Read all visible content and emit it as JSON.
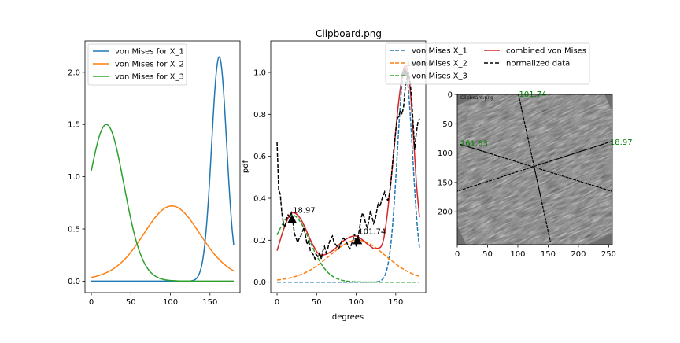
{
  "figure_title": "Clipboard.png",
  "colors": {
    "blue": "#1f77b4",
    "orange": "#ff7f0e",
    "green": "#2ca02c",
    "red": "#d62728",
    "black": "#000000"
  },
  "chart_data": [
    {
      "type": "line",
      "title": "",
      "xlabel": "",
      "ylabel": "",
      "xlim": [
        -8,
        188
      ],
      "ylim": [
        -0.11,
        2.3
      ],
      "xticks": [
        "0",
        "50",
        "100",
        "150"
      ],
      "yticks": [
        "0.0",
        "0.5",
        "1.0",
        "1.5",
        "2.0"
      ],
      "legend_position": "top-left",
      "series": [
        {
          "name": "von Mises for X_1",
          "color": "#1f77b4",
          "mu": 161.63,
          "peak": 2.15,
          "kappa": 36,
          "x": [
            0,
            100,
            120,
            130,
            140,
            150,
            155,
            160,
            162,
            165,
            170,
            175,
            180
          ],
          "y": [
            0.0,
            0.0,
            0.0,
            0.01,
            0.17,
            1.12,
            1.69,
            2.12,
            2.15,
            2.07,
            1.59,
            1.1,
            0.65
          ]
        },
        {
          "name": "von Mises for X_2",
          "color": "#ff7f0e",
          "mu": 101.74,
          "peak": 0.72,
          "kappa": 2.5,
          "x": [
            0,
            25,
            50,
            75,
            100,
            125,
            150,
            180
          ],
          "y": [
            0.01,
            0.05,
            0.21,
            0.51,
            0.72,
            0.53,
            0.22,
            0.04
          ]
        },
        {
          "name": "von Mises for X_3",
          "color": "#2ca02c",
          "mu": 18.97,
          "peak": 1.5,
          "kappa": 6.5,
          "x": [
            0,
            10,
            19,
            30,
            50,
            75,
            100,
            180
          ],
          "y": [
            0.69,
            1.31,
            1.5,
            1.31,
            0.38,
            0.02,
            0.0,
            0.0
          ]
        }
      ]
    },
    {
      "type": "line",
      "title": "Clipboard.png",
      "xlabel": "degrees",
      "ylabel": "pdf",
      "xlim": [
        -8,
        188
      ],
      "ylim": [
        -0.05,
        1.15
      ],
      "xticks": [
        "0",
        "50",
        "100",
        "150"
      ],
      "yticks": [
        "0.0",
        "0.2",
        "0.4",
        "0.6",
        "0.8",
        "1.0"
      ],
      "legend_position": "top-right",
      "series": [
        {
          "name": "von Mises X_1",
          "color": "#1f77b4",
          "dashed": true,
          "mu": 161.63,
          "peak": 1.02,
          "kappa": 36
        },
        {
          "name": "von Mises X_2",
          "color": "#ff7f0e",
          "dashed": true,
          "mu": 101.74,
          "peak": 0.2,
          "kappa": 2.5
        },
        {
          "name": "von Mises X_3",
          "color": "#2ca02c",
          "dashed": true,
          "mu": 18.97,
          "peak": 0.32,
          "kappa": 6.5
        },
        {
          "name": "combined von Mises",
          "color": "#d62728",
          "dashed": false,
          "x": [
            0,
            10,
            19,
            30,
            45,
            55,
            70,
            85,
            100,
            115,
            125,
            135,
            145,
            152,
            158,
            162,
            167,
            172,
            176,
            180
          ],
          "y": [
            0.15,
            0.27,
            0.33,
            0.3,
            0.18,
            0.13,
            0.15,
            0.2,
            0.22,
            0.18,
            0.16,
            0.21,
            0.52,
            0.8,
            0.98,
            1.03,
            0.97,
            0.72,
            0.48,
            0.31
          ]
        },
        {
          "name": "normalized data",
          "color": "#000000",
          "dashed": true,
          "x": [
            0,
            2,
            4,
            6,
            8,
            10,
            12,
            14,
            16,
            18,
            20,
            22,
            24,
            26,
            28,
            30,
            32,
            34,
            36,
            38,
            40,
            42,
            44,
            46,
            48,
            50,
            52,
            54,
            56,
            58,
            60,
            62,
            64,
            66,
            68,
            70,
            72,
            74,
            76,
            78,
            80,
            82,
            84,
            86,
            88,
            90,
            92,
            94,
            96,
            98,
            100,
            102,
            104,
            106,
            108,
            110,
            112,
            114,
            116,
            118,
            120,
            122,
            124,
            126,
            128,
            130,
            132,
            134,
            136,
            138,
            140,
            142,
            144,
            146,
            148,
            150,
            152,
            154,
            156,
            158,
            160,
            162,
            164,
            166,
            168,
            170,
            172,
            174,
            176,
            178,
            180
          ],
          "y": [
            0.67,
            0.44,
            0.42,
            0.33,
            0.28,
            0.26,
            0.3,
            0.32,
            0.31,
            0.33,
            0.29,
            0.23,
            0.21,
            0.19,
            0.21,
            0.22,
            0.24,
            0.26,
            0.22,
            0.18,
            0.2,
            0.15,
            0.14,
            0.13,
            0.11,
            0.13,
            0.12,
            0.14,
            0.11,
            0.15,
            0.17,
            0.14,
            0.16,
            0.19,
            0.21,
            0.22,
            0.19,
            0.18,
            0.17,
            0.16,
            0.18,
            0.2,
            0.21,
            0.2,
            0.19,
            0.17,
            0.16,
            0.18,
            0.2,
            0.23,
            0.17,
            0.21,
            0.25,
            0.3,
            0.33,
            0.31,
            0.28,
            0.26,
            0.29,
            0.34,
            0.31,
            0.28,
            0.3,
            0.34,
            0.38,
            0.36,
            0.39,
            0.41,
            0.43,
            0.4,
            0.39,
            0.42,
            0.48,
            0.57,
            0.65,
            0.72,
            0.78,
            0.79,
            0.82,
            0.8,
            0.84,
            0.93,
            0.97,
            1.0,
            0.96,
            0.88,
            0.76,
            0.63,
            0.71,
            0.76,
            0.78
          ]
        },
        {
          "name": "peaks",
          "color": "#000000",
          "marker": "triangle",
          "x": [
            18.97,
            101.74,
            161.63
          ],
          "y": [
            0.3,
            0.2,
            1.0
          ]
        }
      ],
      "annotations": [
        {
          "text": "18.97",
          "x": 18.97,
          "y": 0.3
        },
        {
          "text": "101.74",
          "x": 101.74,
          "y": 0.2
        },
        {
          "text": "161.63",
          "x": 161.63,
          "y": 1.0
        }
      ]
    },
    {
      "type": "image",
      "title": "",
      "xlim": [
        0,
        256
      ],
      "ylim": [
        0,
        256
      ],
      "xticks": [
        "0",
        "50",
        "100",
        "150",
        "200",
        "250"
      ],
      "yticks": [
        "0",
        "50",
        "100",
        "150",
        "200"
      ],
      "image_watermark": "Clipboard.png",
      "lines": [
        {
          "label": "101.74",
          "color": "#008000",
          "x0": 101,
          "y0": 0,
          "x1": 154,
          "y1": 252
        },
        {
          "label": "161.63",
          "color": "#008000",
          "x0": 5,
          "y0": 85,
          "x1": 255,
          "y1": 165
        },
        {
          "label": "18.97",
          "color": "#008000",
          "x0": 255,
          "y0": 80,
          "x1": 0,
          "y1": 165
        }
      ],
      "labels": [
        {
          "text": "101.74",
          "x": 102,
          "y": 0
        },
        {
          "text": "161.63",
          "x": 5,
          "y": 84
        },
        {
          "text": "18.97",
          "x": 252,
          "y": 82
        }
      ]
    }
  ]
}
